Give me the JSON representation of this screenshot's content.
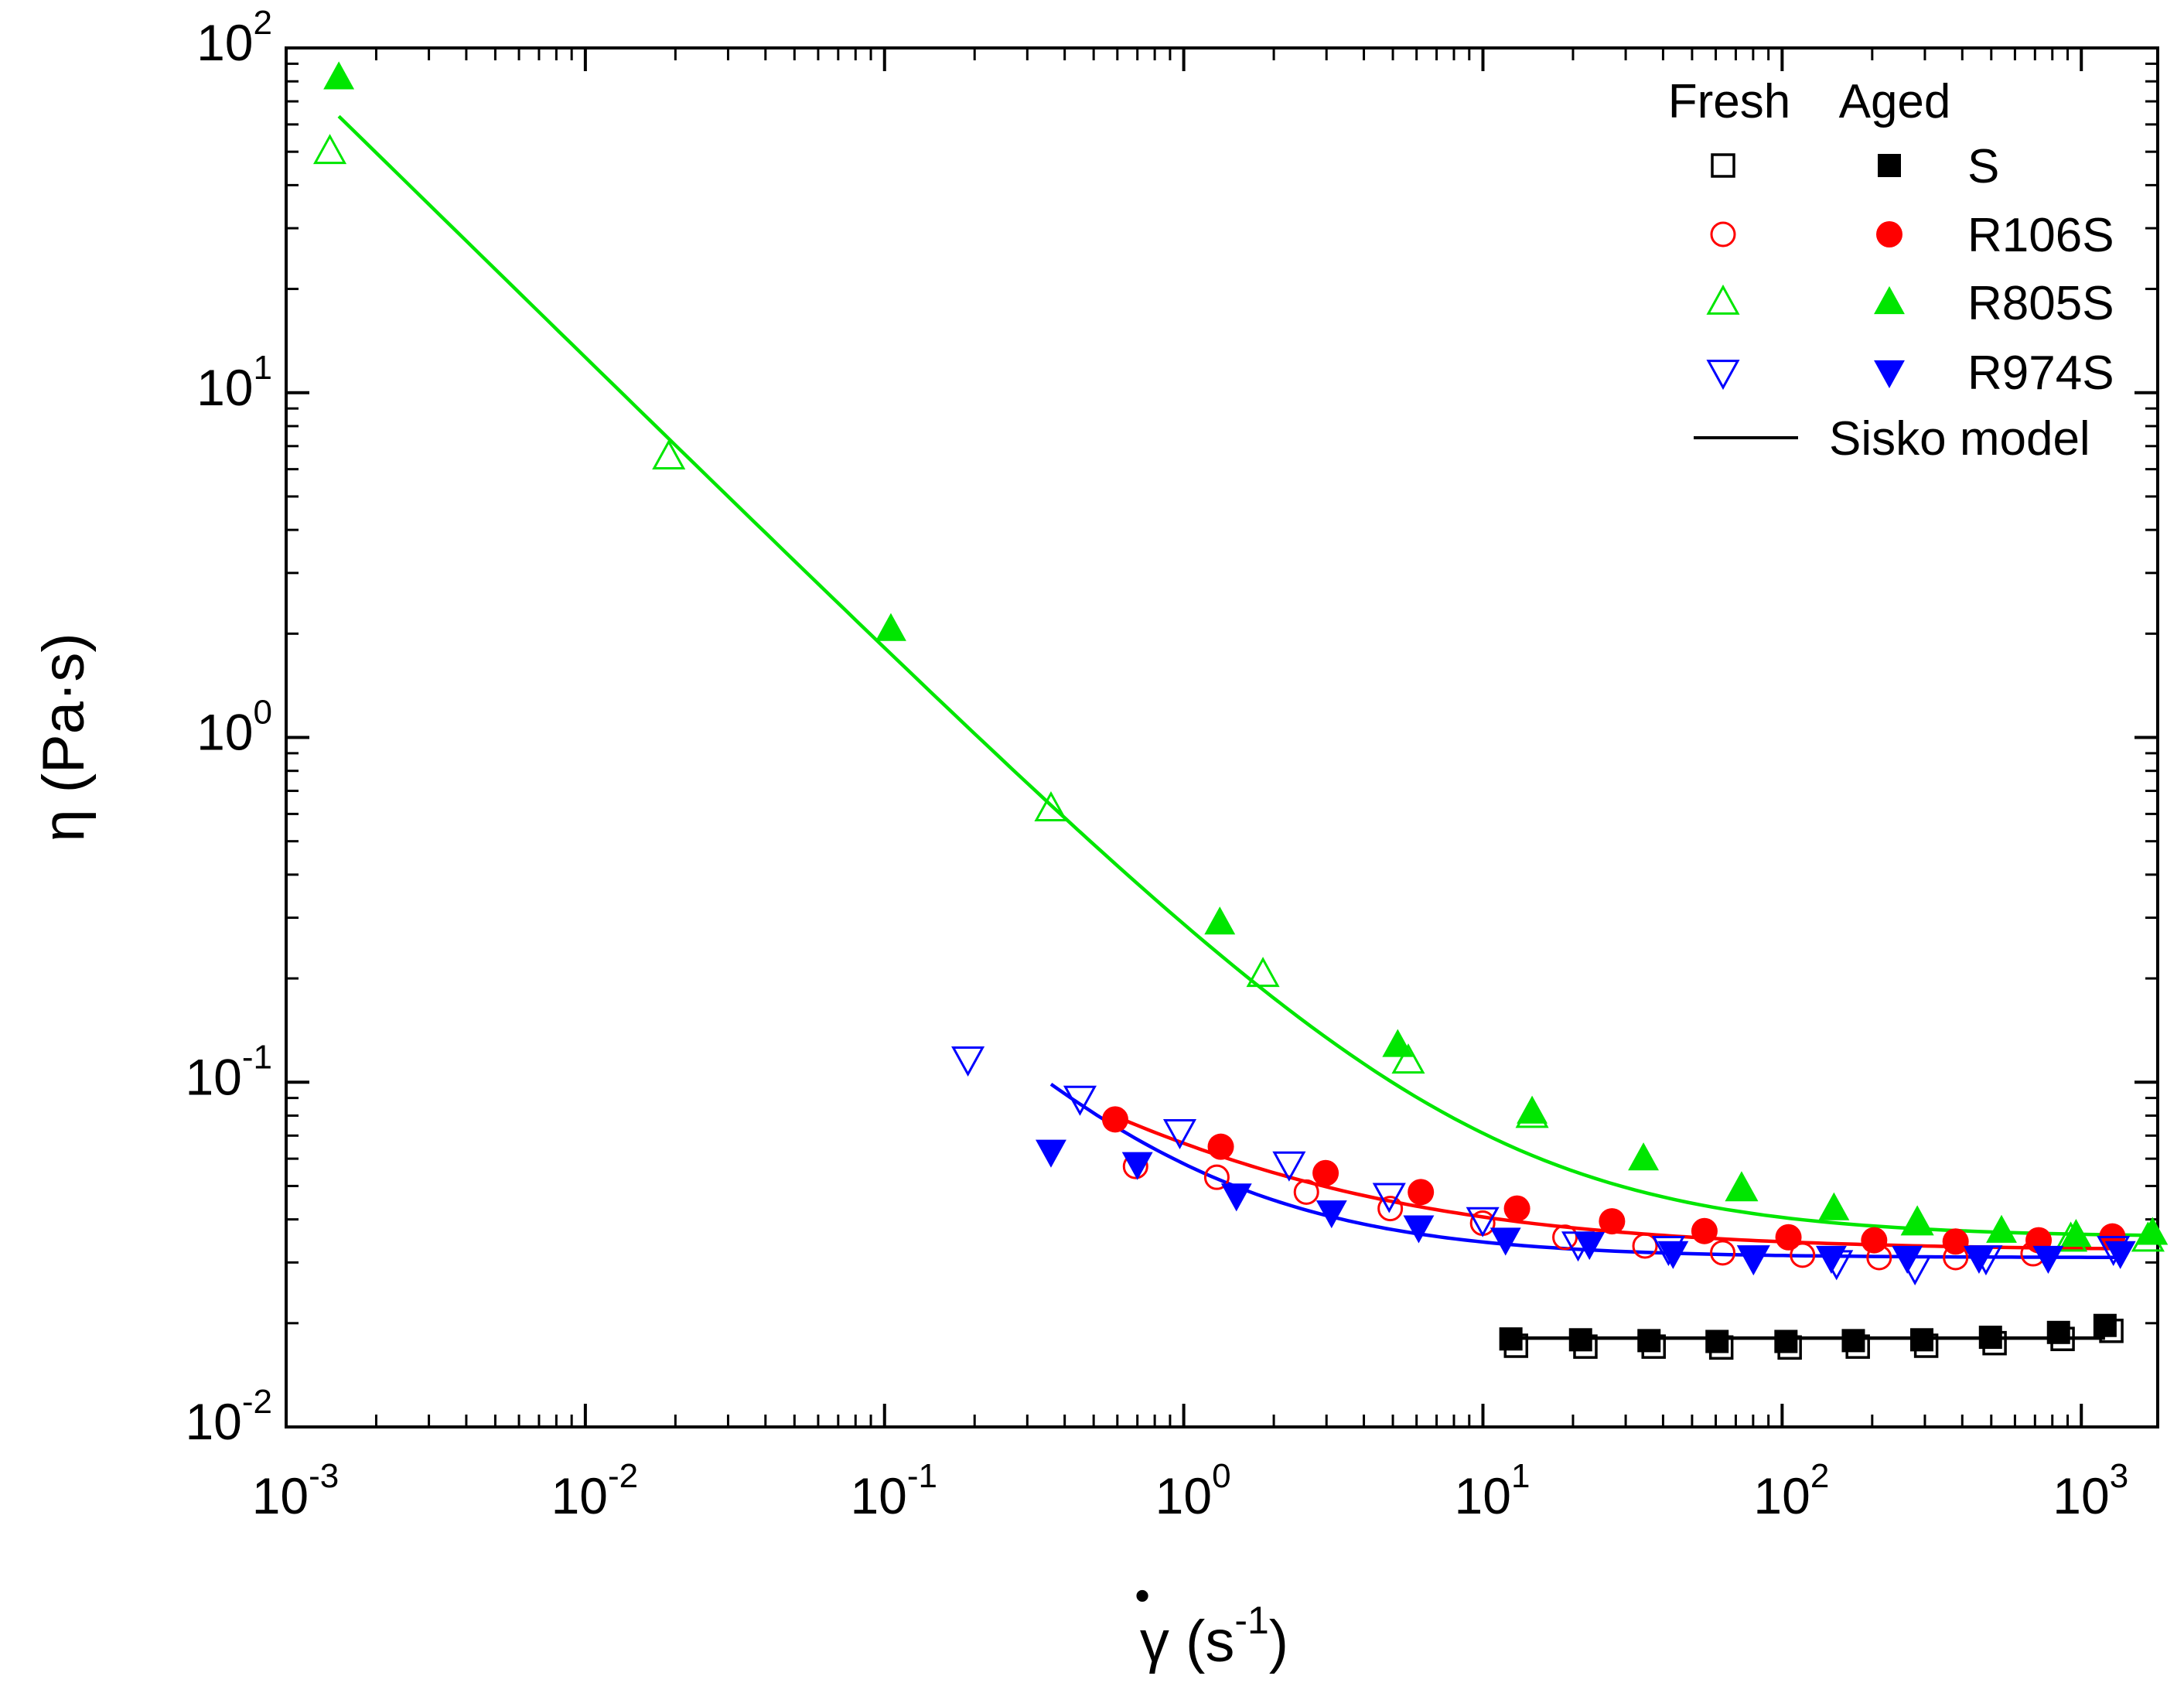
{
  "chart_data": {
    "type": "scatter",
    "x_scale": "log",
    "y_scale": "log",
    "xlim": [
      0.001,
      1800
    ],
    "ylim": [
      0.01,
      100
    ],
    "x_ticks": [
      0.001,
      0.01,
      0.1,
      1,
      10,
      100,
      1000
    ],
    "x_tick_labels": [
      {
        "base": "10",
        "exp": "-3"
      },
      {
        "base": "10",
        "exp": "-2"
      },
      {
        "base": "10",
        "exp": "-1"
      },
      {
        "base": "10",
        "exp": "0"
      },
      {
        "base": "10",
        "exp": "1"
      },
      {
        "base": "10",
        "exp": "2"
      },
      {
        "base": "10",
        "exp": "3"
      }
    ],
    "y_ticks": [
      0.01,
      0.1,
      1,
      10,
      100
    ],
    "y_tick_labels": [
      {
        "base": "10",
        "exp": "-2"
      },
      {
        "base": "10",
        "exp": "-1"
      },
      {
        "base": "10",
        "exp": "0"
      },
      {
        "base": "10",
        "exp": "1"
      },
      {
        "base": "10",
        "exp": "2"
      }
    ],
    "xlabel": {
      "symbol": "γ",
      "dot": "•",
      "unit": "(s",
      "unit_exp": "-1",
      "close": ")"
    },
    "ylabel": "η (Pa·s)",
    "legend": {
      "position": "top-right",
      "header_fresh": "Fresh",
      "header_aged": "Aged",
      "model_label": "Sisko model"
    },
    "series": [
      {
        "name": "S",
        "color": "#000000",
        "marker": "square",
        "fresh": [
          [
            12.9,
            0.0172
          ],
          [
            22.0,
            0.0171
          ],
          [
            37.2,
            0.0171
          ],
          [
            62.6,
            0.017
          ],
          [
            106,
            0.017
          ],
          [
            179,
            0.0171
          ],
          [
            303,
            0.0172
          ],
          [
            513,
            0.0175
          ],
          [
            866,
            0.018
          ],
          [
            1260,
            0.019
          ]
        ],
        "aged": [
          [
            12.4,
            0.018
          ],
          [
            21.2,
            0.0179
          ],
          [
            35.9,
            0.0178
          ],
          [
            60.6,
            0.0177
          ],
          [
            103,
            0.0177
          ],
          [
            173,
            0.0178
          ],
          [
            293,
            0.0179
          ],
          [
            497,
            0.0182
          ],
          [
            839,
            0.0188
          ],
          [
            1200,
            0.0197
          ]
        ],
        "fit": {
          "x_range": [
            11.5,
            1200
          ],
          "eta_inf": 0.0181,
          "k": 0.0,
          "n": 1.0
        }
      },
      {
        "name": "R106S",
        "color": "#ff0000",
        "marker": "circle",
        "fresh": [
          [
            0.69,
            0.057
          ],
          [
            1.29,
            0.053
          ],
          [
            2.57,
            0.048
          ],
          [
            4.9,
            0.043
          ],
          [
            9.98,
            0.039
          ],
          [
            18.8,
            0.0355
          ],
          [
            34.8,
            0.0335
          ],
          [
            63.3,
            0.032
          ],
          [
            117,
            0.0315
          ],
          [
            211,
            0.031
          ],
          [
            380,
            0.031
          ],
          [
            690,
            0.0318
          ]
        ],
        "aged": [
          [
            0.59,
            0.078
          ],
          [
            1.33,
            0.065
          ],
          [
            2.98,
            0.0545
          ],
          [
            6.2,
            0.048
          ],
          [
            13.0,
            0.043
          ],
          [
            27.0,
            0.0395
          ],
          [
            55.0,
            0.037
          ],
          [
            105,
            0.0355
          ],
          [
            203,
            0.0348
          ],
          [
            380,
            0.0345
          ],
          [
            720,
            0.0348
          ],
          [
            1270,
            0.0357
          ]
        ],
        "fit": {
          "x_range": [
            0.59,
            1270
          ],
          "eta_inf": 0.0325,
          "k": 0.034,
          "n": 0.38
        }
      },
      {
        "name": "R805S",
        "color": "#00e600",
        "marker": "triangle-up",
        "fresh": [
          [
            0.0014,
            50.0
          ],
          [
            0.019,
            6.5
          ],
          [
            0.36,
            0.62
          ],
          [
            1.84,
            0.205
          ],
          [
            5.63,
            0.115
          ],
          [
            14.6,
            0.08
          ],
          [
            73.2,
            0.049
          ],
          [
            283,
            0.039
          ],
          [
            922,
            0.035
          ],
          [
            1670,
            0.035
          ]
        ],
        "aged": [
          [
            0.0015,
            82.0
          ],
          [
            0.105,
            2.06
          ],
          [
            1.32,
            0.29
          ],
          [
            5.19,
            0.128
          ],
          [
            14.6,
            0.082
          ],
          [
            34.4,
            0.06
          ],
          [
            73.3,
            0.049
          ],
          [
            149,
            0.043
          ],
          [
            283,
            0.039
          ],
          [
            541,
            0.037
          ],
          [
            960,
            0.036
          ],
          [
            1730,
            0.0365
          ]
        ],
        "fit": {
          "x_range": [
            0.0015,
            1750
          ],
          "eta_inf": 0.0355,
          "k": 0.252,
          "n": 0.15
        }
      },
      {
        "name": "R974S",
        "color": "#0000ff",
        "marker": "triangle-down",
        "fresh": [
          [
            0.19,
            0.117
          ],
          [
            0.45,
            0.09
          ],
          [
            0.97,
            0.072
          ],
          [
            2.25,
            0.058
          ],
          [
            4.86,
            0.047
          ],
          [
            9.98,
            0.04
          ],
          [
            20.8,
            0.034
          ],
          [
            41.7,
            0.033
          ],
          [
            80.2,
            0.031
          ],
          [
            152,
            0.03
          ],
          [
            278,
            0.029
          ],
          [
            480,
            0.031
          ],
          [
            1280,
            0.033
          ]
        ],
        "aged": [
          [
            0.36,
            0.063
          ],
          [
            0.7,
            0.058
          ],
          [
            1.5,
            0.047
          ],
          [
            3.12,
            0.042
          ],
          [
            6.1,
            0.038
          ],
          [
            11.9,
            0.035
          ],
          [
            22.7,
            0.034
          ],
          [
            43.2,
            0.032
          ],
          [
            80.0,
            0.031
          ],
          [
            146,
            0.031
          ],
          [
            262,
            0.031
          ],
          [
            455,
            0.031
          ],
          [
            775,
            0.031
          ],
          [
            1350,
            0.032
          ]
        ],
        "fit": {
          "x_range": [
            0.36,
            1330
          ],
          "eta_inf": 0.031,
          "k": 0.027,
          "n": 0.1
        }
      }
    ]
  }
}
